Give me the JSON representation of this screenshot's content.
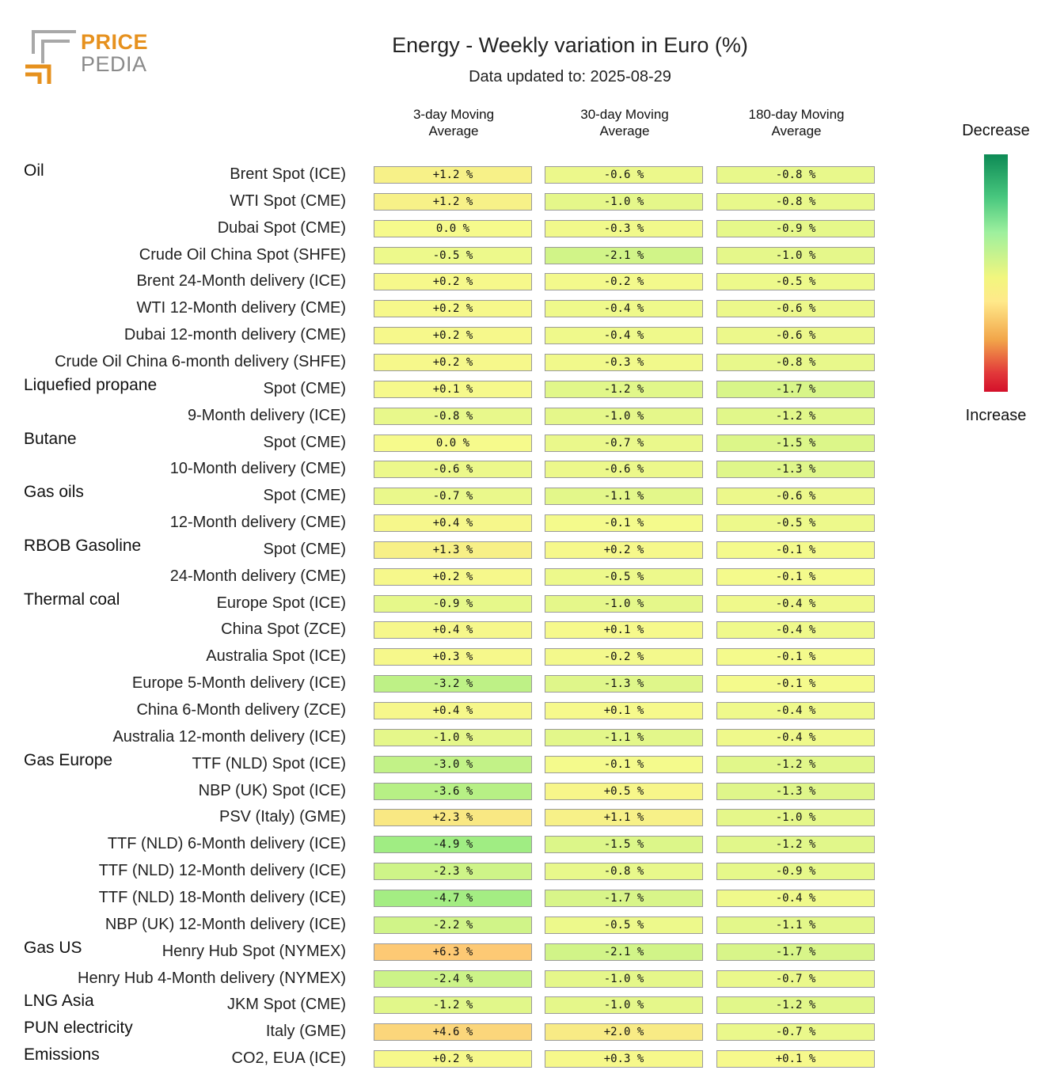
{
  "logo": {
    "word1": "PRICE",
    "word2": "PEDIA"
  },
  "title": "Energy - Weekly variation in Euro (%)",
  "subtitle": "Data updated to: 2025-08-29",
  "legend": {
    "top": "Decrease",
    "bottom": "Increase"
  },
  "chart_data": {
    "type": "table",
    "title": "Energy - Weekly variation in Euro (%)",
    "subtitle": "Data updated to: 2025-08-29",
    "columns": [
      "3-day Moving Average",
      "30-day Moving Average",
      "180-day Moving Average"
    ],
    "column_headers": [
      [
        "3-day Moving",
        "Average"
      ],
      [
        "30-day Moving",
        "Average"
      ],
      [
        "180-day Moving",
        "Average"
      ]
    ],
    "unit": "%",
    "color_scale": {
      "decrease": "#0d8a55",
      "neutral": "#f2f67e",
      "increase": "#d4102a"
    },
    "rows": [
      {
        "group": "Oil",
        "label": "Brent Spot (ICE)",
        "values": [
          1.2,
          -0.6,
          -0.8
        ]
      },
      {
        "group": "",
        "label": "WTI Spot (CME)",
        "values": [
          1.2,
          -1.0,
          -0.8
        ]
      },
      {
        "group": "",
        "label": "Dubai Spot (CME)",
        "values": [
          0.0,
          -0.3,
          -0.9
        ]
      },
      {
        "group": "",
        "label": "Crude Oil China Spot (SHFE)",
        "values": [
          -0.5,
          -2.1,
          -1.0
        ]
      },
      {
        "group": "",
        "label": "Brent 24-Month delivery (ICE)",
        "values": [
          0.2,
          -0.2,
          -0.5
        ]
      },
      {
        "group": "",
        "label": "WTI 12-Month delivery (CME)",
        "values": [
          0.2,
          -0.4,
          -0.6
        ]
      },
      {
        "group": "",
        "label": "Dubai 12-month delivery (CME)",
        "values": [
          0.2,
          -0.4,
          -0.6
        ]
      },
      {
        "group": "",
        "label": "Crude Oil China 6-month delivery (SHFE)",
        "values": [
          0.2,
          -0.3,
          -0.8
        ]
      },
      {
        "group": "Liquefied propane",
        "label": "Spot (CME)",
        "values": [
          0.1,
          -1.2,
          -1.7
        ]
      },
      {
        "group": "",
        "label": "9-Month delivery (ICE)",
        "values": [
          -0.8,
          -1.0,
          -1.2
        ]
      },
      {
        "group": "Butane",
        "label": "Spot (CME)",
        "values": [
          0.0,
          -0.7,
          -1.5
        ]
      },
      {
        "group": "",
        "label": "10-Month delivery (CME)",
        "values": [
          -0.6,
          -0.6,
          -1.3
        ]
      },
      {
        "group": "Gas oils",
        "label": "Spot (CME)",
        "values": [
          -0.7,
          -1.1,
          -0.6
        ]
      },
      {
        "group": "",
        "label": "12-Month delivery (CME)",
        "values": [
          0.4,
          -0.1,
          -0.5
        ]
      },
      {
        "group": "RBOB Gasoline",
        "label": "Spot (CME)",
        "values": [
          1.3,
          0.2,
          -0.1
        ]
      },
      {
        "group": "",
        "label": "24-Month delivery (CME)",
        "values": [
          0.2,
          -0.5,
          -0.1
        ]
      },
      {
        "group": "Thermal coal",
        "label": "Europe Spot (ICE)",
        "values": [
          -0.9,
          -1.0,
          -0.4
        ]
      },
      {
        "group": "",
        "label": "China Spot (ZCE)",
        "values": [
          0.4,
          0.1,
          -0.4
        ]
      },
      {
        "group": "",
        "label": "Australia Spot (ICE)",
        "values": [
          0.3,
          -0.2,
          -0.1
        ]
      },
      {
        "group": "",
        "label": "Europe 5-Month delivery (ICE)",
        "values": [
          -3.2,
          -1.3,
          -0.1
        ]
      },
      {
        "group": "",
        "label": "China 6-Month delivery (ZCE)",
        "values": [
          0.4,
          0.1,
          -0.4
        ]
      },
      {
        "group": "",
        "label": "Australia 12-month delivery (ICE)",
        "values": [
          -1.0,
          -1.1,
          -0.4
        ]
      },
      {
        "group": "Gas Europe",
        "label": "TTF (NLD) Spot (ICE)",
        "values": [
          -3.0,
          -0.1,
          -1.2
        ]
      },
      {
        "group": "",
        "label": "NBP (UK) Spot (ICE)",
        "values": [
          -3.6,
          0.5,
          -1.3
        ]
      },
      {
        "group": "",
        "label": "PSV (Italy) (GME)",
        "values": [
          2.3,
          1.1,
          -1.0
        ]
      },
      {
        "group": "",
        "label": "TTF (NLD) 6-Month delivery (ICE)",
        "values": [
          -4.9,
          -1.5,
          -1.2
        ]
      },
      {
        "group": "",
        "label": "TTF (NLD) 12-Month delivery (ICE)",
        "values": [
          -2.3,
          -0.8,
          -0.9
        ]
      },
      {
        "group": "",
        "label": "TTF (NLD) 18-Month delivery (ICE)",
        "values": [
          -4.7,
          -1.7,
          -0.4
        ]
      },
      {
        "group": "",
        "label": "NBP (UK) 12-Month delivery (ICE)",
        "values": [
          -2.2,
          -0.5,
          -1.1
        ]
      },
      {
        "group": "Gas US",
        "label": "Henry Hub Spot (NYMEX)",
        "values": [
          6.3,
          -2.1,
          -1.7
        ]
      },
      {
        "group": "",
        "label": "Henry Hub 4-Month delivery (NYMEX)",
        "values": [
          -2.4,
          -1.0,
          -0.7
        ]
      },
      {
        "group": "LNG Asia",
        "label": "JKM Spot (CME)",
        "values": [
          -1.2,
          -1.0,
          -1.2
        ]
      },
      {
        "group": "PUN electricity",
        "label": "Italy (GME)",
        "values": [
          4.6,
          2.0,
          -0.7
        ]
      },
      {
        "group": "Emissions",
        "label": "CO2, EUA (ICE)",
        "values": [
          0.2,
          0.3,
          0.1
        ]
      }
    ]
  }
}
